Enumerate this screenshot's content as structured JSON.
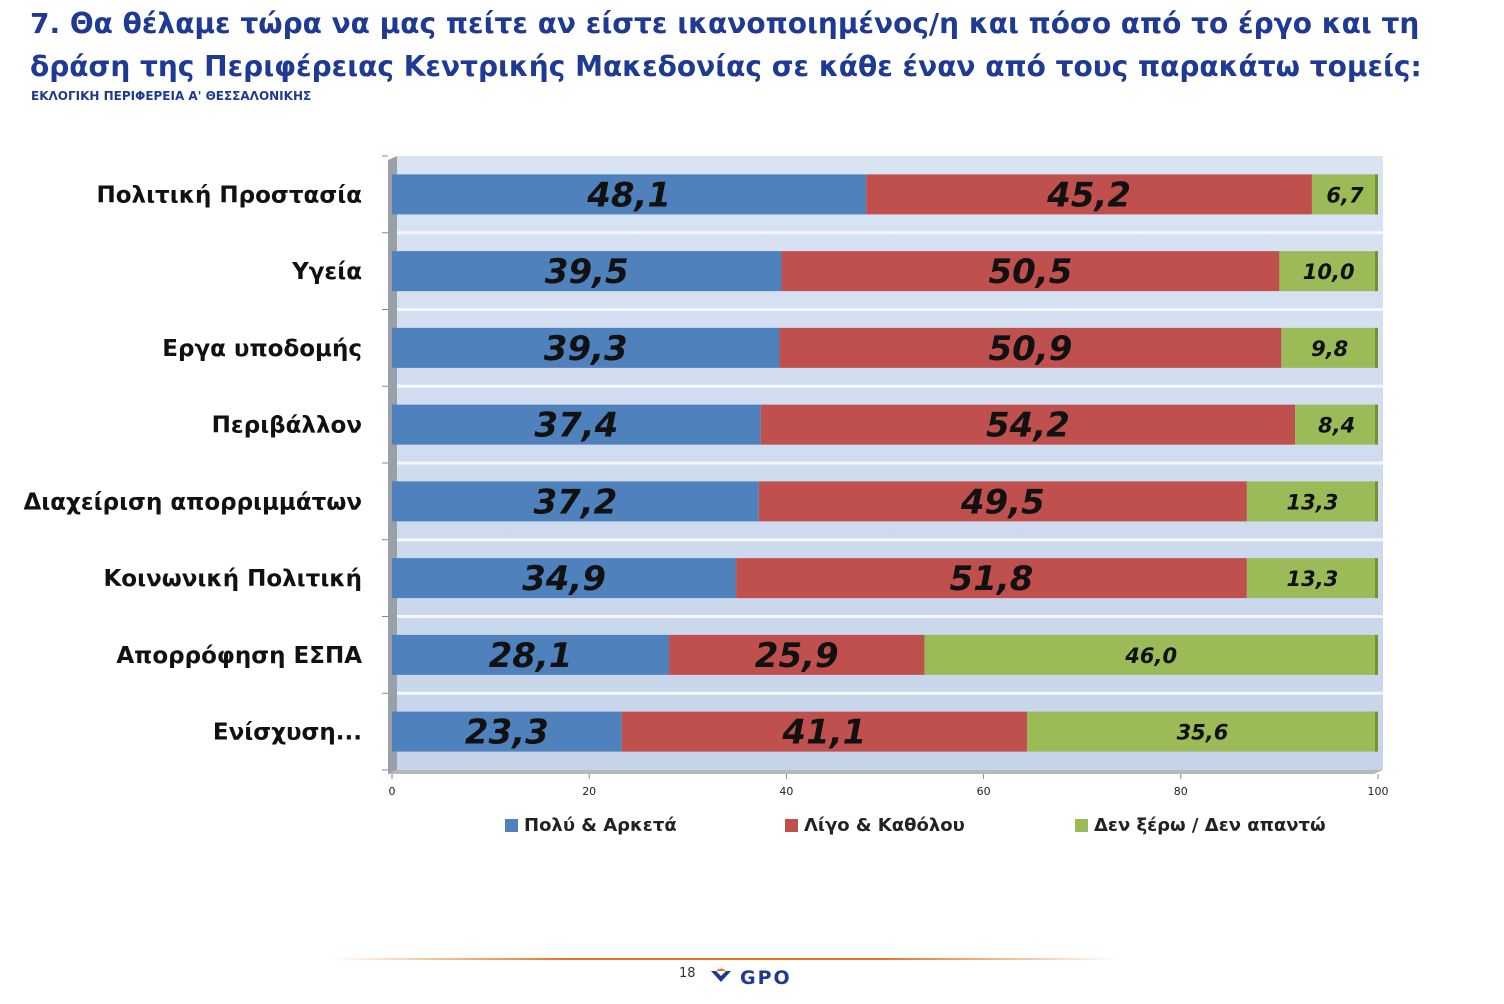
{
  "header": {
    "title": "7. Θα θέλαμε τώρα να μας πείτε αν είστε ικανοποιημένος/η και πόσο από το έργο και τη δράση της Περιφέρειας Κεντρικής Μακεδονίας σε κάθε έναν από τους παρακάτω τομείς:",
    "subtitle": "ΕΚΛΟΓΙΚΗ ΠΕΡΙΦΕΡΕΙΑ Α' ΘΕΣΣΑΛΟΝΙΚΗΣ"
  },
  "chart_data": {
    "type": "bar",
    "orientation": "horizontal",
    "stacked": true,
    "categories": [
      "Πολιτική Προστασία",
      "Υγεία",
      "Εργα υποδομής",
      "Περιβάλλον",
      "Διαχείριση απορριμμάτων",
      "Κοινωνική Πολιτική",
      "Απορρόφηση ΕΣΠΑ",
      "Ενίσχυση..."
    ],
    "series": [
      {
        "name": "Πολύ & Αρκετά",
        "color": "#4f81bd",
        "values": [
          48.1,
          39.5,
          39.3,
          37.4,
          37.2,
          34.9,
          28.1,
          23.3
        ],
        "labels": [
          "48,1",
          "39,5",
          "39,3",
          "37,4",
          "37,2",
          "34,9",
          "28,1",
          "23,3"
        ]
      },
      {
        "name": "Λίγο & Καθόλου",
        "color": "#c0504d",
        "values": [
          45.2,
          50.5,
          50.9,
          54.2,
          49.5,
          51.8,
          25.9,
          41.1
        ],
        "labels": [
          "45,2",
          "50,5",
          "50,9",
          "54,2",
          "49,5",
          "51,8",
          "25,9",
          "41,1"
        ]
      },
      {
        "name": "Δεν ξέρω / Δεν απαντώ",
        "color": "#9bbb59",
        "values": [
          6.7,
          10.0,
          9.8,
          8.4,
          13.3,
          13.3,
          46.0,
          35.6
        ],
        "labels": [
          "6,7",
          "10,0",
          "9,8",
          "8,4",
          "13,3",
          "13,3",
          "46,0",
          "35,6"
        ]
      }
    ],
    "xticks": [
      "0",
      "20",
      "40",
      "60",
      "80",
      "100"
    ],
    "xlim": [
      0,
      100
    ],
    "legend_position": "bottom",
    "grid": false
  },
  "footer": {
    "page_number": "18",
    "logo_text": "GPO"
  }
}
